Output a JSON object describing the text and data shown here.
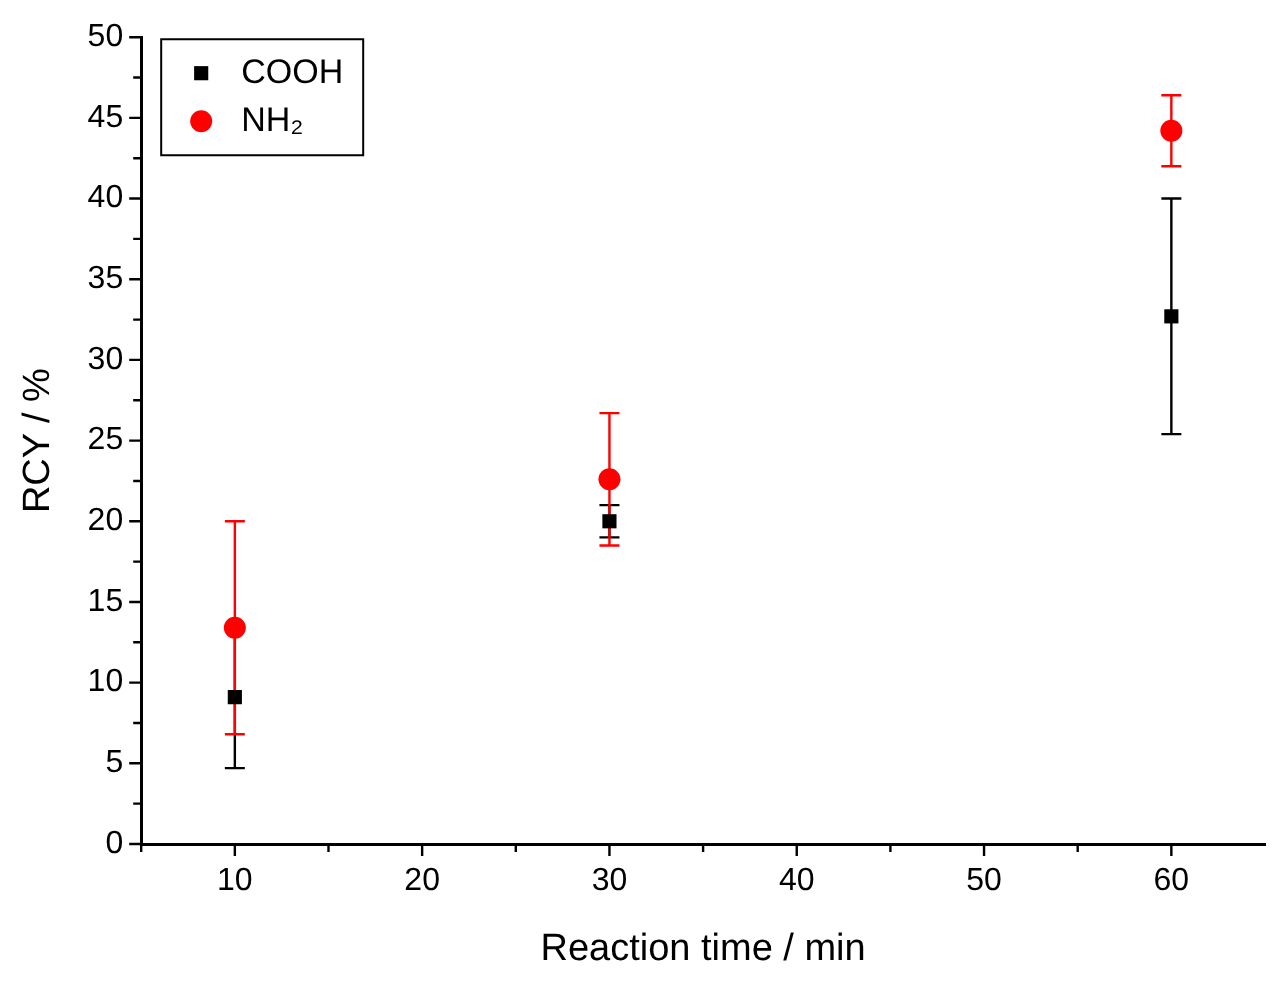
{
  "chart_data": {
    "type": "scatter",
    "xlabel": "Reaction time / min",
    "ylabel": "RCY / %",
    "x": [
      10,
      30,
      60
    ],
    "series": [
      {
        "name": "COOH",
        "color": "#000000",
        "marker": "square",
        "values": [
          9.1,
          20.0,
          32.7
        ],
        "errors": [
          4.4,
          1.0,
          7.3
        ]
      },
      {
        "name": "NH₂",
        "color": "#ff0000",
        "marker": "circle",
        "values": [
          13.4,
          22.6,
          44.2
        ],
        "errors": [
          6.6,
          4.1,
          2.2
        ]
      }
    ],
    "xlim": [
      5,
      65
    ],
    "xticks": [
      {
        "value": 5,
        "label": null
      },
      10,
      {
        "value": 15,
        "label": null
      },
      20,
      {
        "value": 25,
        "label": null
      },
      30,
      {
        "value": 35,
        "label": null
      },
      40,
      {
        "value": 45,
        "label": null
      },
      50,
      {
        "value": 55,
        "label": null
      },
      60
    ],
    "ylim": [
      0,
      50
    ],
    "yticks": [
      0,
      {
        "value": 2.5,
        "label": null
      },
      5,
      {
        "value": 7.5,
        "label": null
      },
      10,
      {
        "value": 12.5,
        "label": null
      },
      15,
      {
        "value": 17.5,
        "label": null
      },
      20,
      {
        "value": 22.5,
        "label": null
      },
      25,
      {
        "value": 27.5,
        "label": null
      },
      30,
      {
        "value": 32.5,
        "label": null
      },
      35,
      {
        "value": 37.5,
        "label": null
      },
      40,
      {
        "value": 42.5,
        "label": null
      },
      45,
      {
        "value": 47.5,
        "label": null
      },
      50
    ],
    "grid": false,
    "legend": "top left"
  }
}
